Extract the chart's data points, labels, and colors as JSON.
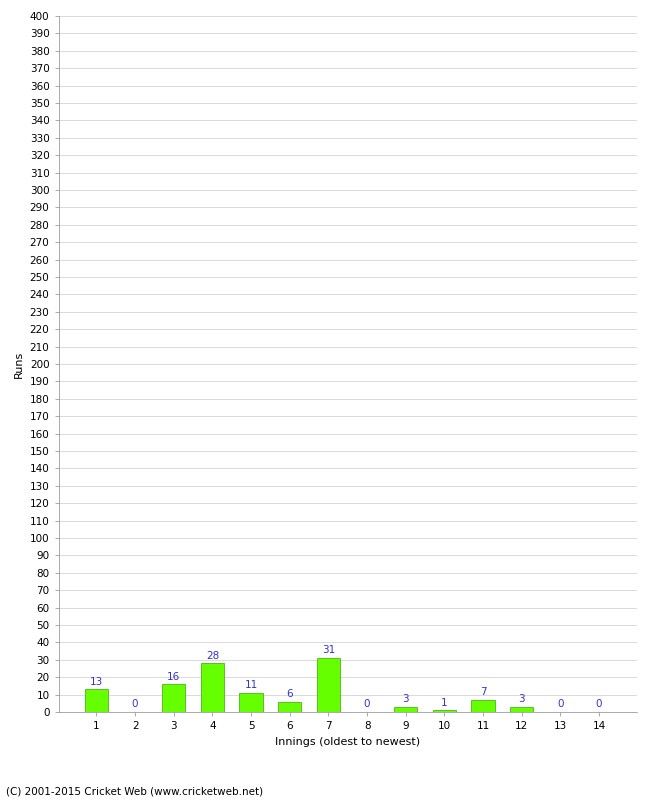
{
  "categories": [
    "1",
    "2",
    "3",
    "4",
    "5",
    "6",
    "7",
    "8",
    "9",
    "10",
    "11",
    "12",
    "13",
    "14"
  ],
  "values": [
    13,
    0,
    16,
    28,
    11,
    6,
    31,
    0,
    3,
    1,
    7,
    3,
    0,
    0
  ],
  "bar_color": "#66ff00",
  "bar_edge_color": "#33aa00",
  "label_color": "#3333cc",
  "ylabel": "Runs",
  "xlabel": "Innings (oldest to newest)",
  "ylim_max": 400,
  "background_color": "#ffffff",
  "grid_color": "#cccccc",
  "footer": "(C) 2001-2015 Cricket Web (www.cricketweb.net)",
  "label_fontsize": 7.5,
  "axis_tick_fontsize": 7.5,
  "axis_label_fontsize": 8,
  "footer_fontsize": 7.5
}
